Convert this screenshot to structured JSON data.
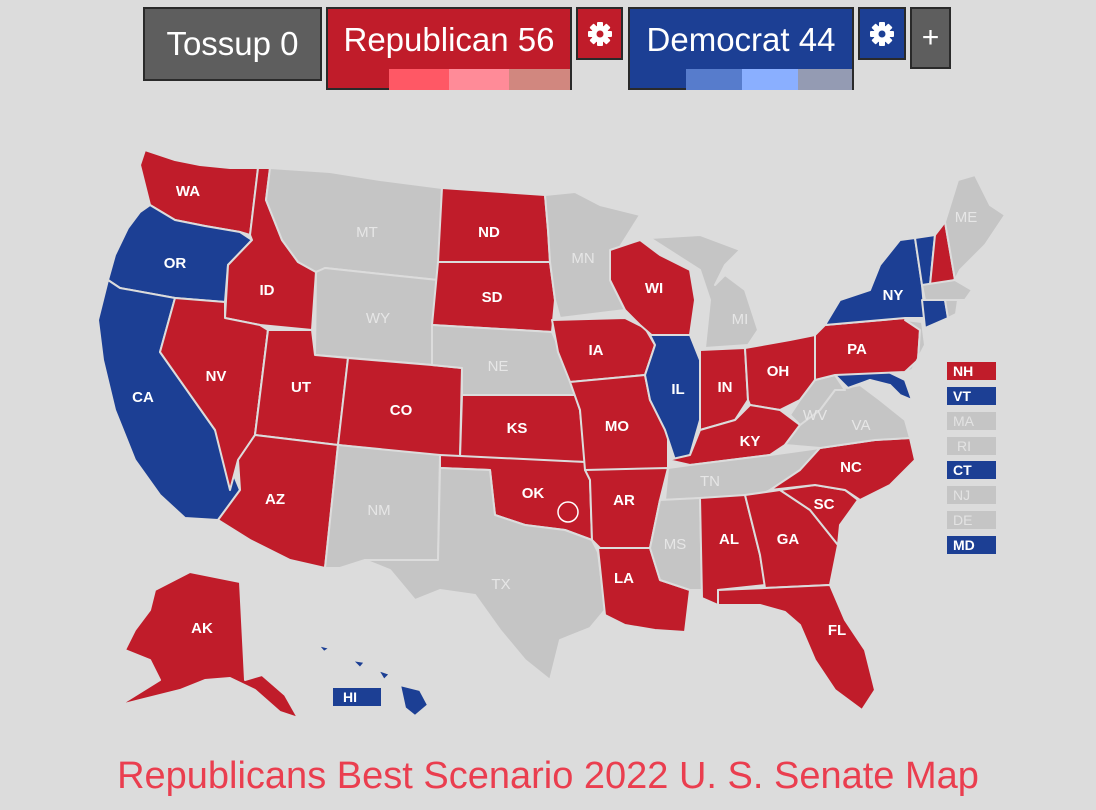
{
  "header": {
    "tossup_label": "Tossup 0",
    "republican_label": "Republican 56",
    "democrat_label": "Democrat 44",
    "add_label": "+",
    "gear_icon": "gear-icon"
  },
  "colors": {
    "republican": "#c01c2a",
    "democrat": "#1c3f94",
    "tossup": "#5e5e5e",
    "no_election": "#c5c5c5",
    "rep_shades": [
      "#ff5865",
      "#ff8b98",
      "#d1877f"
    ],
    "dem_shades": [
      "#577ccc",
      "#8aafff",
      "#949bb3"
    ],
    "title": "#ea3e4f"
  },
  "states": {
    "WA": "WA",
    "OR": "OR",
    "CA": "CA",
    "ID": "ID",
    "NV": "NV",
    "MT": "MT",
    "WY": "WY",
    "UT": "UT",
    "AZ": "AZ",
    "CO": "CO",
    "NM": "NM",
    "ND": "ND",
    "SD": "SD",
    "NE": "NE",
    "KS": "KS",
    "OK": "OK",
    "TX": "TX",
    "MN": "MN",
    "IA": "IA",
    "MO": "MO",
    "AR": "AR",
    "LA": "LA",
    "WI": "WI",
    "IL": "IL",
    "MI": "MI",
    "IN": "IN",
    "OH": "OH",
    "KY": "KY",
    "TN": "TN",
    "MS": "MS",
    "AL": "AL",
    "GA": "GA",
    "FL": "FL",
    "SC": "SC",
    "NC": "NC",
    "VA": "VA",
    "WV": "WV",
    "PA": "PA",
    "NY": "NY",
    "ME": "ME",
    "AK": "AK",
    "HI": "HI"
  },
  "small_states": {
    "NH": "NH",
    "VT": "VT",
    "MA": "MA",
    "RI": "RI",
    "CT": "CT",
    "NJ": "NJ",
    "DE": "DE",
    "MD": "MD"
  },
  "title": "Republicans Best Scenario 2022 U. S. Senate Map"
}
